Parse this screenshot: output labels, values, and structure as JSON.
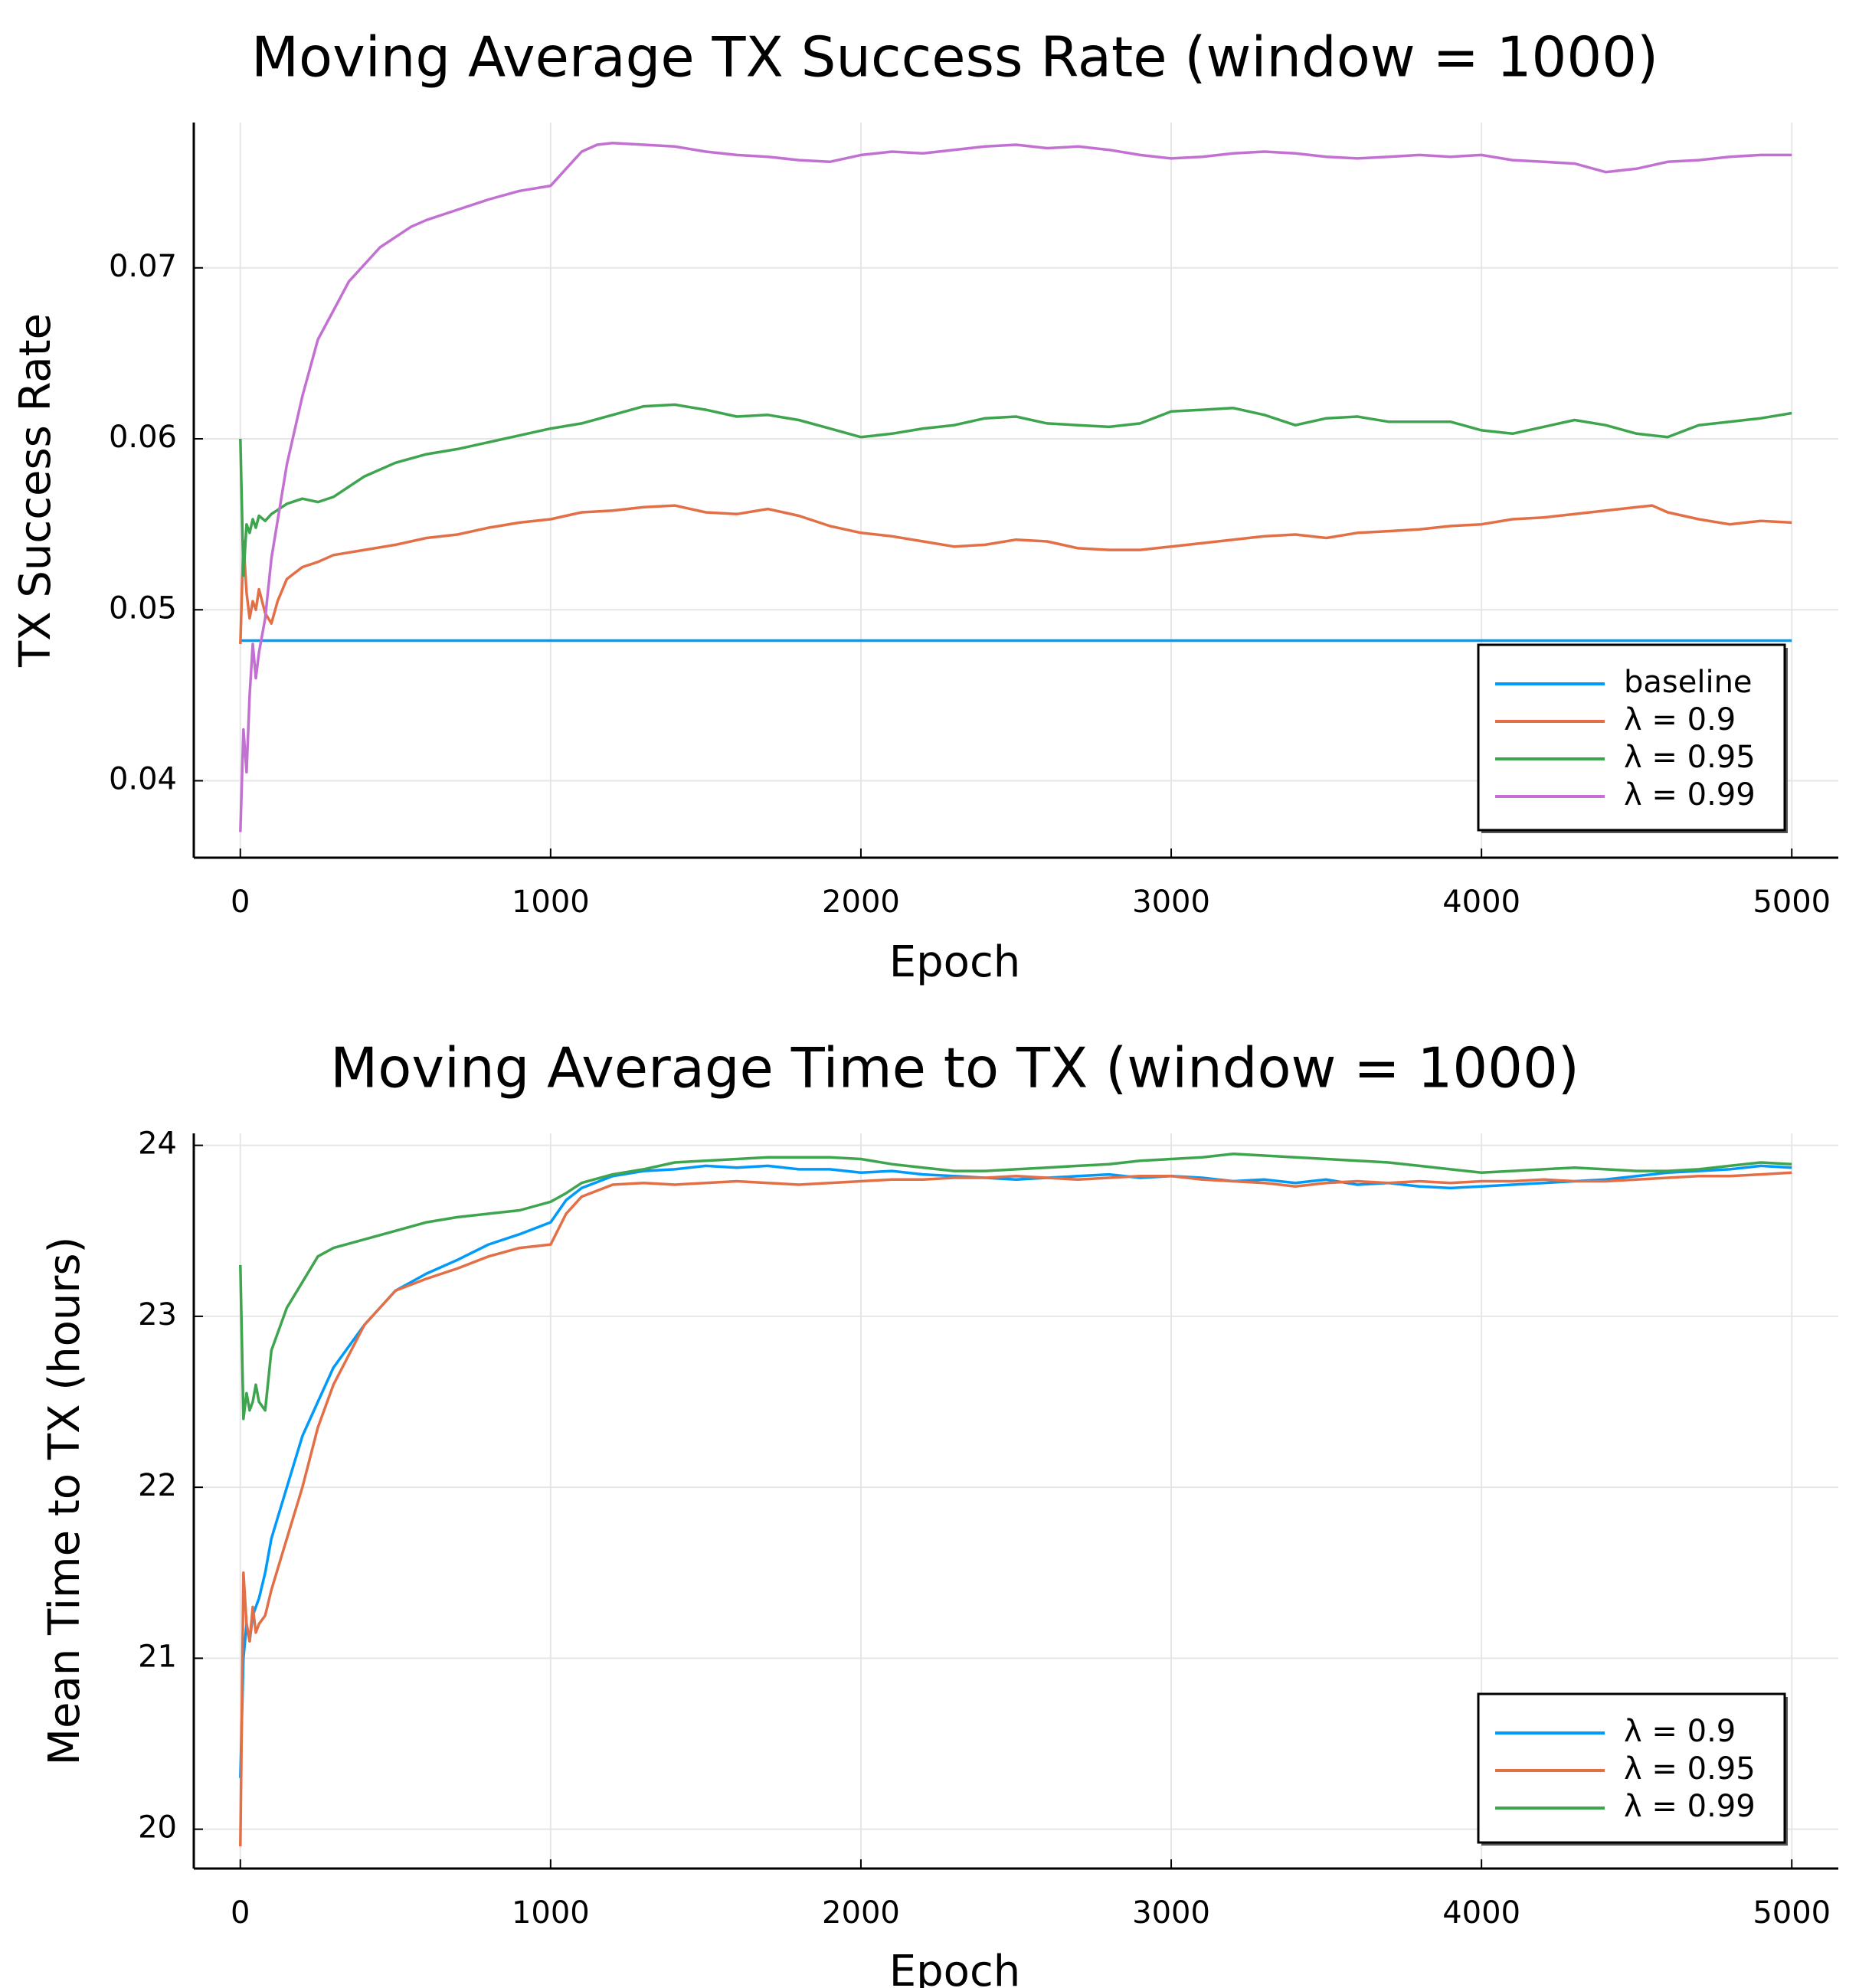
{
  "chart_data": [
    {
      "type": "line",
      "title": "Moving Average TX Success Rate (window = 1000)",
      "xlabel": "Epoch",
      "ylabel": "TX Success Rate",
      "xlim": [
        -150,
        5150
      ],
      "ylim": [
        0.0355,
        0.0785
      ],
      "xticks": [
        0,
        1000,
        2000,
        3000,
        4000,
        5000
      ],
      "xtick_labels": [
        "0",
        "1000",
        "2000",
        "3000",
        "4000",
        "5000"
      ],
      "yticks": [
        0.04,
        0.05,
        0.06,
        0.07
      ],
      "ytick_labels": [
        "0.04",
        "0.05",
        "0.06",
        "0.07"
      ],
      "grid": true,
      "legend_position": "bottom-right",
      "series": [
        {
          "name": "baseline",
          "color": "#009AFA",
          "x": [
            0,
            5000
          ],
          "y": [
            0.0482,
            0.0482
          ]
        },
        {
          "name": "λ = 0.9",
          "color": "#E36F47",
          "x": [
            0,
            10,
            20,
            30,
            40,
            50,
            60,
            80,
            100,
            120,
            150,
            200,
            250,
            300,
            400,
            500,
            600,
            700,
            800,
            900,
            1000,
            1100,
            1200,
            1300,
            1400,
            1500,
            1600,
            1700,
            1800,
            1900,
            2000,
            2100,
            2200,
            2300,
            2400,
            2500,
            2600,
            2700,
            2800,
            2900,
            3000,
            3100,
            3200,
            3300,
            3400,
            3500,
            3600,
            3700,
            3800,
            3900,
            4000,
            4100,
            4200,
            4300,
            4400,
            4500,
            4550,
            4600,
            4700,
            4800,
            4900,
            5000
          ],
          "y": [
            0.048,
            0.054,
            0.051,
            0.0495,
            0.0505,
            0.05,
            0.0512,
            0.0498,
            0.0492,
            0.0505,
            0.0518,
            0.0525,
            0.0528,
            0.0532,
            0.0535,
            0.0538,
            0.0542,
            0.0544,
            0.0548,
            0.0551,
            0.0553,
            0.0557,
            0.0558,
            0.056,
            0.0561,
            0.0557,
            0.0556,
            0.0559,
            0.0555,
            0.0549,
            0.0545,
            0.0543,
            0.054,
            0.0537,
            0.0538,
            0.0541,
            0.054,
            0.0536,
            0.0535,
            0.0535,
            0.0537,
            0.0539,
            0.0541,
            0.0543,
            0.0544,
            0.0542,
            0.0545,
            0.0546,
            0.0547,
            0.0549,
            0.055,
            0.0553,
            0.0554,
            0.0556,
            0.0558,
            0.056,
            0.0561,
            0.0557,
            0.0553,
            0.055,
            0.0552,
            0.0551
          ]
        },
        {
          "name": "λ = 0.95",
          "color": "#3EA44E",
          "x": [
            0,
            10,
            20,
            30,
            40,
            50,
            60,
            80,
            100,
            150,
            200,
            250,
            300,
            350,
            400,
            500,
            600,
            700,
            800,
            900,
            1000,
            1100,
            1200,
            1300,
            1400,
            1500,
            1600,
            1700,
            1800,
            1900,
            2000,
            2100,
            2200,
            2300,
            2400,
            2500,
            2600,
            2700,
            2800,
            2900,
            3000,
            3100,
            3200,
            3300,
            3400,
            3500,
            3600,
            3700,
            3800,
            3900,
            4000,
            4100,
            4200,
            4300,
            4400,
            4500,
            4600,
            4700,
            4800,
            4900,
            5000
          ],
          "y": [
            0.06,
            0.052,
            0.055,
            0.0545,
            0.0553,
            0.0548,
            0.0555,
            0.0552,
            0.0556,
            0.0562,
            0.0565,
            0.0563,
            0.0566,
            0.0572,
            0.0578,
            0.0586,
            0.0591,
            0.0594,
            0.0598,
            0.0602,
            0.0606,
            0.0609,
            0.0614,
            0.0619,
            0.062,
            0.0617,
            0.0613,
            0.0614,
            0.0611,
            0.0606,
            0.0601,
            0.0603,
            0.0606,
            0.0608,
            0.0612,
            0.0613,
            0.0609,
            0.0608,
            0.0607,
            0.0609,
            0.0616,
            0.0617,
            0.0618,
            0.0614,
            0.0608,
            0.0612,
            0.0613,
            0.061,
            0.061,
            0.061,
            0.0605,
            0.0603,
            0.0607,
            0.0611,
            0.0608,
            0.0603,
            0.0601,
            0.0608,
            0.061,
            0.0612,
            0.0615
          ]
        },
        {
          "name": "λ = 0.99",
          "color": "#C271D2",
          "x": [
            0,
            10,
            20,
            30,
            40,
            50,
            60,
            80,
            100,
            150,
            200,
            250,
            300,
            350,
            400,
            450,
            500,
            550,
            600,
            700,
            800,
            900,
            1000,
            1050,
            1100,
            1150,
            1200,
            1300,
            1400,
            1500,
            1600,
            1700,
            1800,
            1900,
            2000,
            2100,
            2200,
            2300,
            2400,
            2500,
            2600,
            2700,
            2800,
            2900,
            3000,
            3100,
            3200,
            3300,
            3400,
            3500,
            3600,
            3700,
            3800,
            3900,
            4000,
            4100,
            4200,
            4300,
            4400,
            4500,
            4600,
            4700,
            4800,
            4900,
            5000
          ],
          "y": [
            0.037,
            0.043,
            0.0405,
            0.045,
            0.048,
            0.046,
            0.0475,
            0.0495,
            0.053,
            0.0585,
            0.0625,
            0.0658,
            0.0675,
            0.0692,
            0.0702,
            0.0712,
            0.0718,
            0.0724,
            0.0728,
            0.0734,
            0.074,
            0.0745,
            0.0748,
            0.0758,
            0.0768,
            0.0772,
            0.0773,
            0.0772,
            0.0771,
            0.0768,
            0.0766,
            0.0765,
            0.0763,
            0.0762,
            0.0766,
            0.0768,
            0.0767,
            0.0769,
            0.0771,
            0.0772,
            0.077,
            0.0771,
            0.0769,
            0.0766,
            0.0764,
            0.0765,
            0.0767,
            0.0768,
            0.0767,
            0.0765,
            0.0764,
            0.0765,
            0.0766,
            0.0765,
            0.0766,
            0.0763,
            0.0762,
            0.0761,
            0.0756,
            0.0758,
            0.0762,
            0.0763,
            0.0765,
            0.0766,
            0.0766
          ]
        }
      ]
    },
    {
      "type": "line",
      "title": "Moving Average Time to TX (window = 1000)",
      "xlabel": "Epoch",
      "ylabel": "Mean Time to TX (hours)",
      "xlim": [
        -150,
        5150
      ],
      "ylim": [
        19.77,
        24.07
      ],
      "xticks": [
        0,
        1000,
        2000,
        3000,
        4000,
        5000
      ],
      "xtick_labels": [
        "0",
        "1000",
        "2000",
        "3000",
        "4000",
        "5000"
      ],
      "yticks": [
        20,
        21,
        22,
        23,
        24
      ],
      "ytick_labels": [
        "20",
        "21",
        "22",
        "23",
        "24"
      ],
      "grid": true,
      "legend_position": "bottom-right",
      "series": [
        {
          "name": "λ = 0.9",
          "color": "#009AFA",
          "x": [
            0,
            10,
            20,
            30,
            40,
            50,
            60,
            80,
            100,
            150,
            200,
            250,
            300,
            400,
            500,
            600,
            700,
            800,
            900,
            1000,
            1050,
            1100,
            1200,
            1300,
            1400,
            1500,
            1600,
            1700,
            1800,
            1900,
            2000,
            2100,
            2200,
            2300,
            2400,
            2500,
            2600,
            2700,
            2800,
            2900,
            3000,
            3100,
            3200,
            3300,
            3400,
            3500,
            3600,
            3700,
            3800,
            3900,
            4000,
            4100,
            4200,
            4300,
            4400,
            4500,
            4600,
            4700,
            4800,
            4900,
            5000
          ],
          "y": [
            20.3,
            21.0,
            21.2,
            21.1,
            21.25,
            21.3,
            21.35,
            21.5,
            21.7,
            22.0,
            22.3,
            22.5,
            22.7,
            22.95,
            23.15,
            23.25,
            23.33,
            23.42,
            23.48,
            23.55,
            23.68,
            23.75,
            23.82,
            23.85,
            23.86,
            23.88,
            23.87,
            23.88,
            23.86,
            23.86,
            23.84,
            23.85,
            23.83,
            23.82,
            23.81,
            23.8,
            23.81,
            23.82,
            23.83,
            23.81,
            23.82,
            23.81,
            23.79,
            23.8,
            23.78,
            23.8,
            23.77,
            23.78,
            23.76,
            23.75,
            23.76,
            23.77,
            23.78,
            23.79,
            23.8,
            23.82,
            23.84,
            23.85,
            23.86,
            23.88,
            23.87
          ]
        },
        {
          "name": "λ = 0.95",
          "color": "#E36F47",
          "x": [
            0,
            10,
            20,
            30,
            40,
            50,
            60,
            80,
            100,
            150,
            200,
            250,
            300,
            400,
            500,
            600,
            700,
            800,
            900,
            1000,
            1050,
            1100,
            1200,
            1300,
            1400,
            1500,
            1600,
            1700,
            1800,
            1900,
            2000,
            2100,
            2200,
            2300,
            2400,
            2500,
            2600,
            2700,
            2800,
            2900,
            3000,
            3100,
            3200,
            3300,
            3400,
            3500,
            3600,
            3700,
            3800,
            3900,
            4000,
            4100,
            4200,
            4300,
            4400,
            4500,
            4600,
            4700,
            4800,
            4900,
            5000
          ],
          "y": [
            19.9,
            21.5,
            21.2,
            21.1,
            21.3,
            21.15,
            21.2,
            21.25,
            21.4,
            21.7,
            22.0,
            22.35,
            22.6,
            22.95,
            23.15,
            23.22,
            23.28,
            23.35,
            23.4,
            23.42,
            23.6,
            23.7,
            23.77,
            23.78,
            23.77,
            23.78,
            23.79,
            23.78,
            23.77,
            23.78,
            23.79,
            23.8,
            23.8,
            23.81,
            23.81,
            23.82,
            23.81,
            23.8,
            23.81,
            23.82,
            23.82,
            23.8,
            23.79,
            23.78,
            23.76,
            23.78,
            23.79,
            23.78,
            23.79,
            23.78,
            23.79,
            23.79,
            23.8,
            23.79,
            23.79,
            23.8,
            23.81,
            23.82,
            23.82,
            23.83,
            23.84
          ]
        },
        {
          "name": "λ = 0.99",
          "color": "#3EA44E",
          "x": [
            0,
            10,
            20,
            30,
            40,
            50,
            60,
            80,
            100,
            150,
            200,
            250,
            300,
            400,
            500,
            600,
            700,
            800,
            900,
            1000,
            1050,
            1100,
            1200,
            1300,
            1400,
            1500,
            1600,
            1700,
            1800,
            1900,
            2000,
            2100,
            2200,
            2300,
            2400,
            2500,
            2600,
            2700,
            2800,
            2900,
            3000,
            3100,
            3200,
            3300,
            3400,
            3500,
            3600,
            3700,
            3800,
            3900,
            4000,
            4100,
            4200,
            4300,
            4400,
            4500,
            4600,
            4700,
            4800,
            4900,
            5000
          ],
          "y": [
            23.3,
            22.4,
            22.55,
            22.45,
            22.5,
            22.6,
            22.5,
            22.45,
            22.8,
            23.05,
            23.2,
            23.35,
            23.4,
            23.45,
            23.5,
            23.55,
            23.58,
            23.6,
            23.62,
            23.67,
            23.72,
            23.78,
            23.83,
            23.86,
            23.9,
            23.91,
            23.92,
            23.93,
            23.93,
            23.93,
            23.92,
            23.89,
            23.87,
            23.85,
            23.85,
            23.86,
            23.87,
            23.88,
            23.89,
            23.91,
            23.92,
            23.93,
            23.95,
            23.94,
            23.93,
            23.92,
            23.91,
            23.9,
            23.88,
            23.86,
            23.84,
            23.85,
            23.86,
            23.87,
            23.86,
            23.85,
            23.85,
            23.86,
            23.88,
            23.9,
            23.89
          ]
        }
      ]
    }
  ]
}
